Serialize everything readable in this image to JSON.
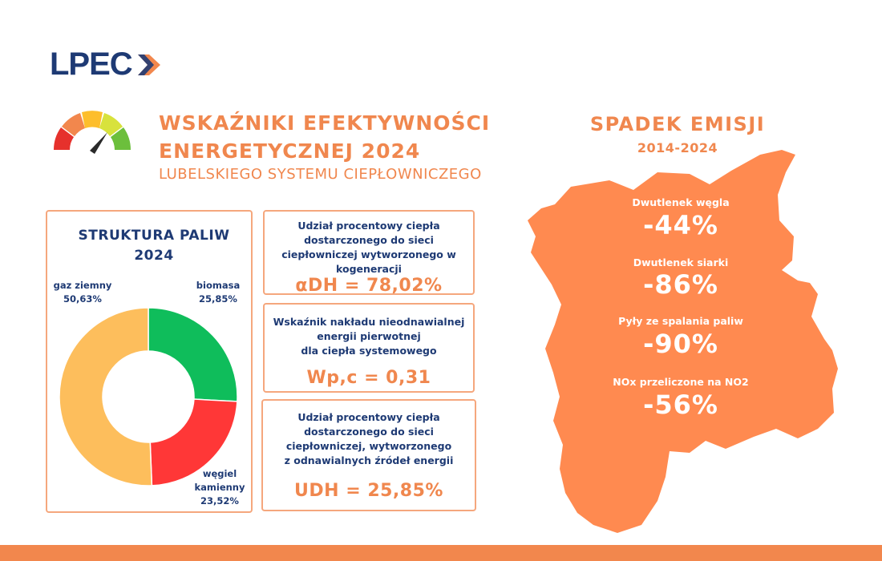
{
  "brand": {
    "logo_text": "LPEC",
    "accent_orange": "#f2874d",
    "navy": "#1e3a74"
  },
  "header": {
    "title_line1": "WSKAŹNIKI EFEKTYWNOŚCI",
    "title_line2": "ENERGETYCZNEJ 2024",
    "subtitle": "LUBELSKIEGO SYSTEMU CIEPŁOWNICZEGO",
    "gauge_icon": "speedometer-gauge-icon"
  },
  "fuel_structure": {
    "title_line1": "STRUKTURA PALIW",
    "title_line2": "2024"
  },
  "chart_data": {
    "type": "pie",
    "donut": true,
    "title": "STRUKTURA PALIW 2024",
    "categories": [
      "biomasa",
      "węgiel kamienny",
      "gaz ziemny"
    ],
    "values": [
      25.85,
      23.52,
      50.63
    ],
    "colors": [
      "#0fbd5b",
      "#ff3737",
      "#fdbe5c"
    ],
    "labels": [
      {
        "name_lines": [
          "biomasa"
        ],
        "value_text": "25,85%"
      },
      {
        "name_lines": [
          "węgiel",
          "kamienny"
        ],
        "value_text": "23,52%"
      },
      {
        "name_lines": [
          "gaz ziemny"
        ],
        "value_text": "50,63%"
      }
    ]
  },
  "indicators": [
    {
      "lines": [
        "Udział procentowy ciepła",
        "dostarczonego do sieci",
        "ciepłowniczej wytworzonego w",
        "kogeneracji"
      ],
      "value": "αDH = 78,02%"
    },
    {
      "lines": [
        "Wskaźnik nakładu nieodnawialnej",
        "energii pierwotnej",
        "dla ciepła systemowego"
      ],
      "value": "Wp,c = 0,31"
    },
    {
      "lines": [
        "Udział procentowy ciepła",
        "dostarczonego do sieci",
        "ciepłowniczej, wytworzonego",
        "z odnawialnych źródeł energii"
      ],
      "value": "UDH = 25,85%"
    }
  ],
  "emissions": {
    "title": "SPADEK EMISJI",
    "years": "2014-2024",
    "map_color": "#ff8a50",
    "items": [
      {
        "label": "Dwutlenek węgla",
        "value": "-44%"
      },
      {
        "label": "Dwutlenek siarki",
        "value": "-86%"
      },
      {
        "label": "Pyły ze spalania paliw",
        "value": "-90%"
      },
      {
        "label": "NOx przeliczone na NO2",
        "value": "-56%"
      }
    ]
  }
}
